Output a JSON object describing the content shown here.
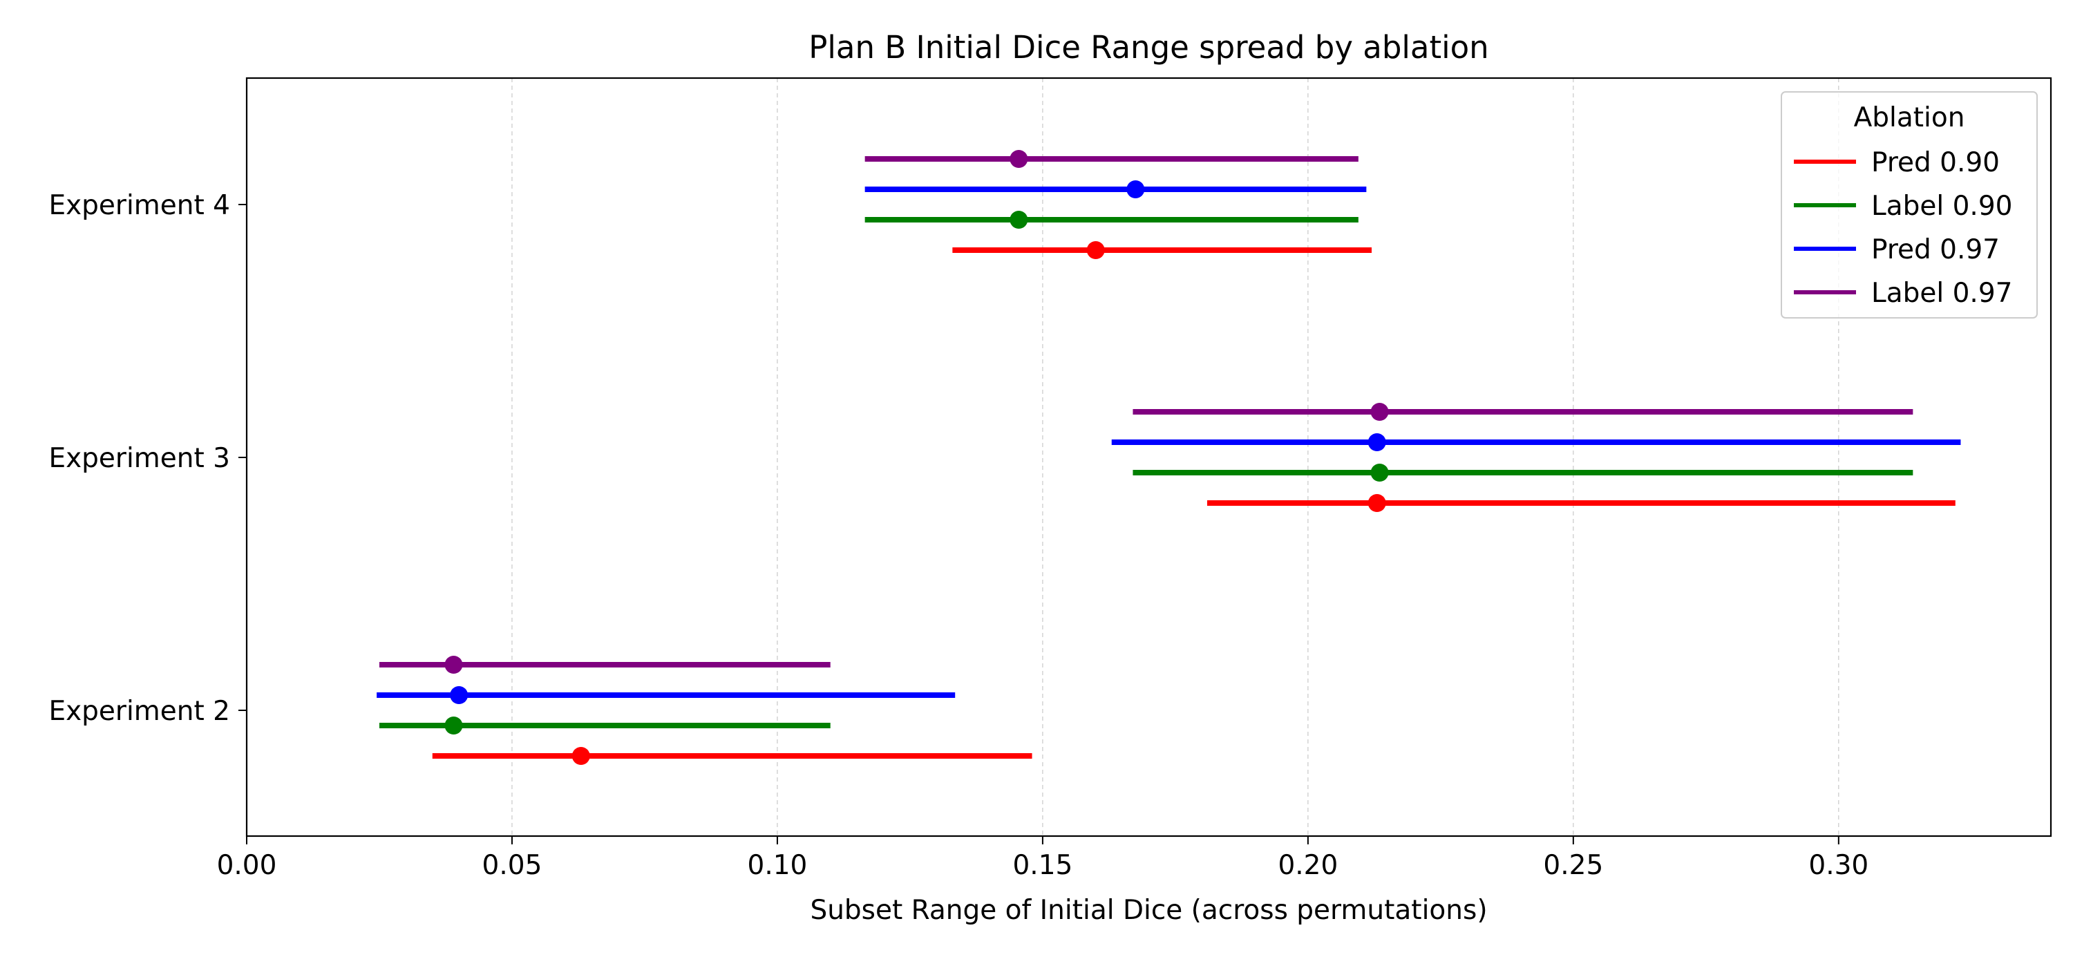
{
  "chart_data": {
    "type": "range",
    "title": "Plan B Initial Dice Range spread by ablation",
    "xlabel": "Subset Range of Initial Dice (across permutations)",
    "ylabel": "",
    "xlim": [
      0.0,
      0.34
    ],
    "xticks": [
      0.0,
      0.05,
      0.1,
      0.15,
      0.2,
      0.25,
      0.3
    ],
    "xtick_labels": [
      "0.00",
      "0.05",
      "0.10",
      "0.15",
      "0.20",
      "0.25",
      "0.30"
    ],
    "categories": [
      "Experiment 2",
      "Experiment 3",
      "Experiment 4"
    ],
    "grid": "x-dashed",
    "legend": {
      "title": "Ablation",
      "placement": "top-right"
    },
    "series": [
      {
        "name": "Pred 0.90",
        "color": "#ff0000",
        "points": [
          {
            "category": "Experiment 2",
            "low": 0.035,
            "high": 0.148,
            "value": 0.063
          },
          {
            "category": "Experiment 3",
            "low": 0.181,
            "high": 0.322,
            "value": 0.213
          },
          {
            "category": "Experiment 4",
            "low": 0.133,
            "high": 0.212,
            "value": 0.16
          }
        ]
      },
      {
        "name": "Label 0.90",
        "color": "#008000",
        "points": [
          {
            "category": "Experiment 2",
            "low": 0.025,
            "high": 0.11,
            "value": 0.039
          },
          {
            "category": "Experiment 3",
            "low": 0.167,
            "high": 0.314,
            "value": 0.2135
          },
          {
            "category": "Experiment 4",
            "low": 0.1165,
            "high": 0.2095,
            "value": 0.1455
          }
        ]
      },
      {
        "name": "Pred 0.97",
        "color": "#0000ff",
        "points": [
          {
            "category": "Experiment 2",
            "low": 0.0245,
            "high": 0.1335,
            "value": 0.04
          },
          {
            "category": "Experiment 3",
            "low": 0.163,
            "high": 0.323,
            "value": 0.213
          },
          {
            "category": "Experiment 4",
            "low": 0.1165,
            "high": 0.211,
            "value": 0.1675
          }
        ]
      },
      {
        "name": "Label 0.97",
        "color": "#800080",
        "points": [
          {
            "category": "Experiment 2",
            "low": 0.025,
            "high": 0.11,
            "value": 0.039
          },
          {
            "category": "Experiment 3",
            "low": 0.167,
            "high": 0.314,
            "value": 0.2135
          },
          {
            "category": "Experiment 4",
            "low": 0.1165,
            "high": 0.2095,
            "value": 0.1455
          }
        ]
      }
    ]
  }
}
